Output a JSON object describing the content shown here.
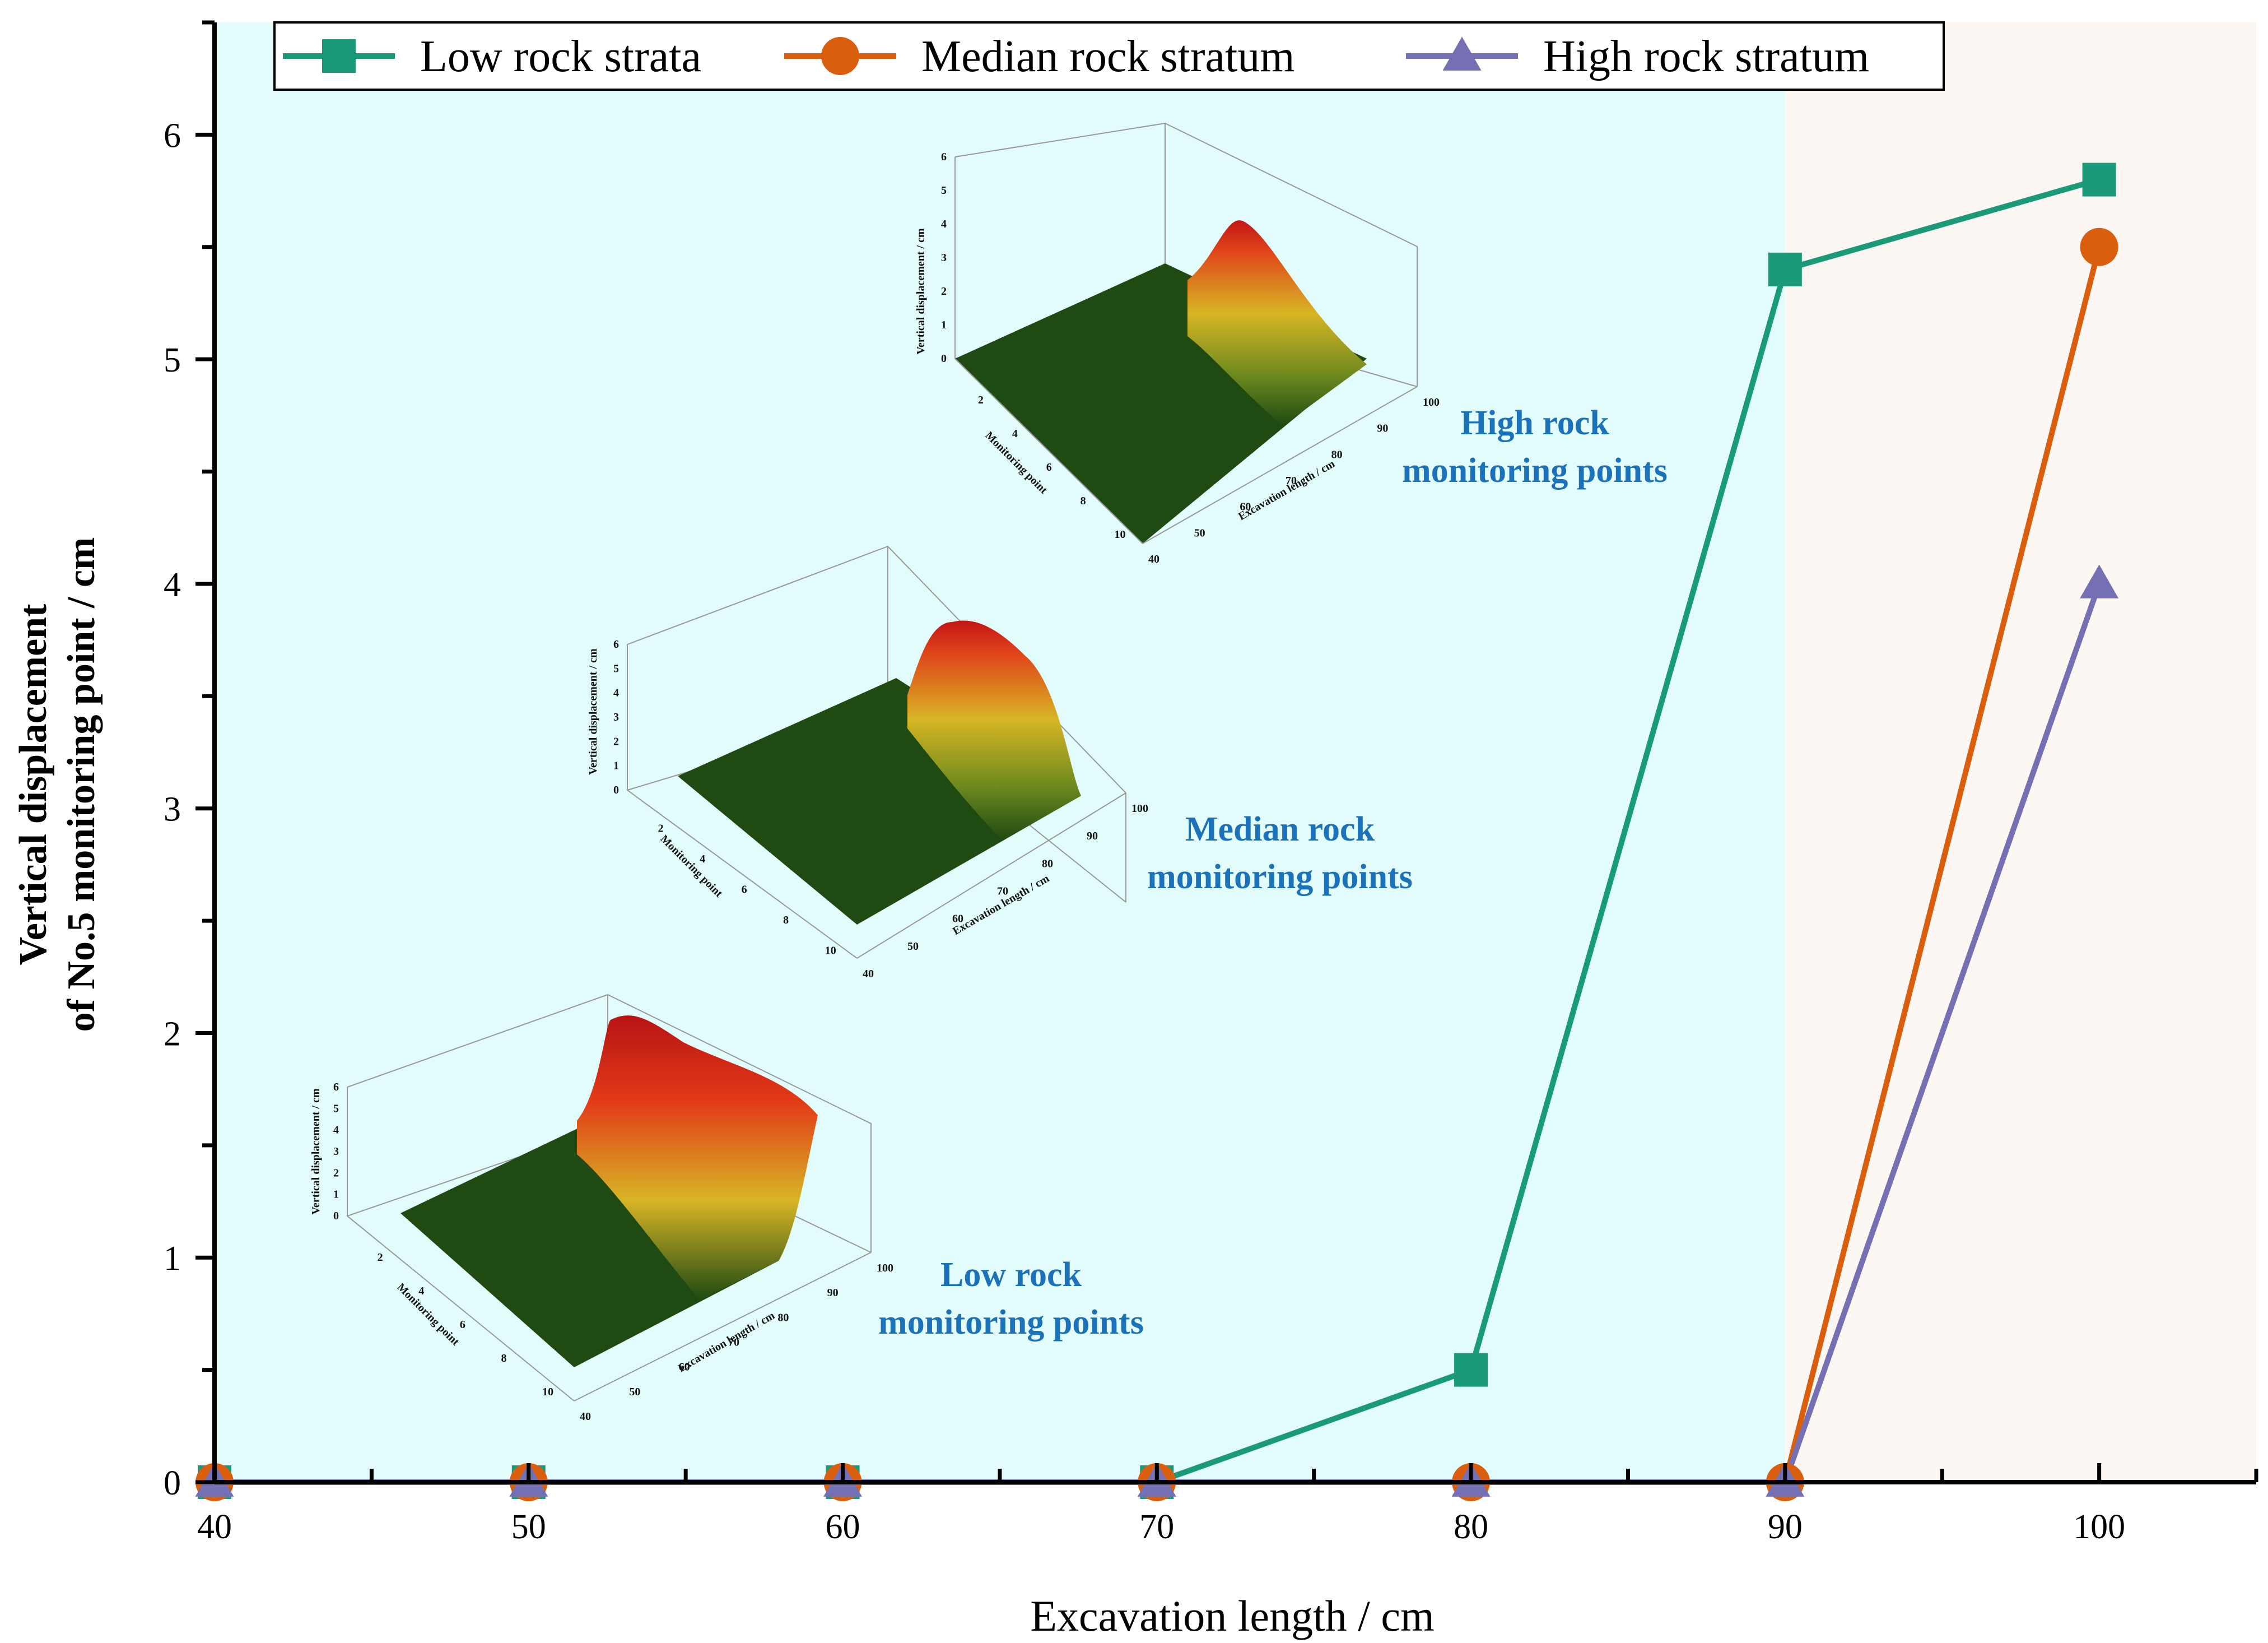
{
  "chart_data": {
    "type": "line",
    "title": "",
    "xlabel": "Excavation length / cm",
    "ylabel_line1": "Vertical displacement",
    "ylabel_line2": "of No.5 monitoring point / cm",
    "x": [
      40,
      50,
      60,
      70,
      80,
      90,
      100
    ],
    "xlim": [
      40,
      105
    ],
    "ylim": [
      0,
      6.5
    ],
    "xticks": [
      40,
      50,
      60,
      70,
      80,
      90,
      100
    ],
    "yticks": [
      0,
      1,
      2,
      3,
      4,
      5,
      6
    ],
    "shaded_regions": [
      {
        "from": 40,
        "to": 90,
        "color": "#e2fbfb"
      },
      {
        "from": 90,
        "to": 105,
        "color": "#fcf7f2"
      }
    ],
    "series": [
      {
        "name": "Low rock strata",
        "color": "#1a9a78",
        "marker": "square",
        "values": [
          0,
          0,
          0,
          0,
          0.5,
          5.4,
          5.8
        ]
      },
      {
        "name": "Median rock stratum",
        "color": "#d95f0e",
        "marker": "circle",
        "values": [
          0,
          0,
          0,
          0,
          0,
          0,
          5.5
        ]
      },
      {
        "name": "High rock stratum",
        "color": "#7570b3",
        "marker": "triangle",
        "values": [
          0,
          0,
          0,
          0,
          0,
          0,
          4.0
        ]
      }
    ],
    "legend_position": "top"
  },
  "insets": [
    {
      "id": "high",
      "label_line1": "High rock",
      "label_line2": "monitoring points"
    },
    {
      "id": "median",
      "label_line1": "Median rock",
      "label_line2": "monitoring points"
    },
    {
      "id": "low",
      "label_line1": "Low rock",
      "label_line2": "monitoring points"
    }
  ],
  "inset_axes": {
    "zlabel": "Vertical displacement / cm",
    "ylabel": "Monitoring point",
    "xlabel": "Excavation length / cm",
    "zticks": [
      "0",
      "1",
      "2",
      "3",
      "4",
      "5",
      "6"
    ],
    "yticks": [
      "2",
      "4",
      "6",
      "8",
      "10"
    ],
    "xticks": [
      "40",
      "50",
      "60",
      "70",
      "80",
      "90",
      "100"
    ]
  }
}
